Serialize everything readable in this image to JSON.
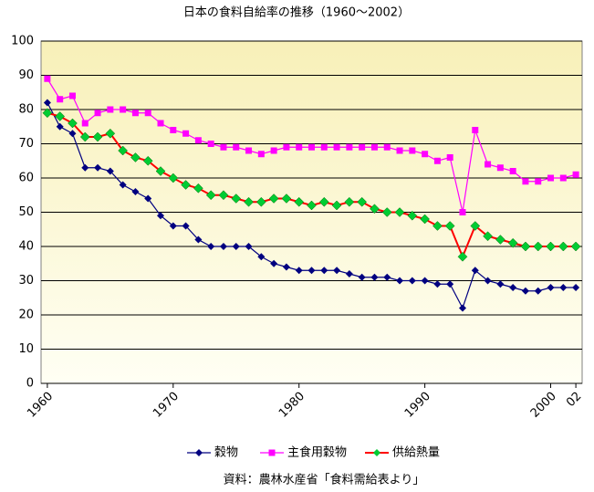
{
  "chart_data": {
    "type": "line",
    "title": "日本の食料自給率の推移（1960～2002）",
    "note": "資料：農林水産省「食料需給表より」",
    "x": [
      1960,
      1961,
      1962,
      1963,
      1964,
      1965,
      1966,
      1967,
      1968,
      1969,
      1970,
      1971,
      1972,
      1973,
      1974,
      1975,
      1976,
      1977,
      1978,
      1979,
      1980,
      1981,
      1982,
      1983,
      1984,
      1985,
      1986,
      1987,
      1988,
      1989,
      1990,
      1991,
      1992,
      1993,
      1994,
      1995,
      1996,
      1997,
      1998,
      1999,
      2000,
      2001,
      2002
    ],
    "series": [
      {
        "name": "穀物",
        "color": "#000080",
        "marker": "diamond",
        "values": [
          82,
          75,
          73,
          63,
          63,
          62,
          58,
          56,
          54,
          49,
          46,
          46,
          42,
          40,
          40,
          40,
          40,
          37,
          35,
          34,
          33,
          33,
          33,
          33,
          32,
          31,
          31,
          31,
          30,
          30,
          30,
          29,
          29,
          22,
          33,
          30,
          29,
          28,
          27,
          27,
          28,
          28,
          28
        ]
      },
      {
        "name": "主食用穀物",
        "color": "#ff00ff",
        "marker": "square",
        "values": [
          89,
          83,
          84,
          76,
          79,
          80,
          80,
          79,
          79,
          76,
          74,
          73,
          71,
          70,
          69,
          69,
          68,
          67,
          68,
          69,
          69,
          69,
          69,
          69,
          69,
          69,
          69,
          69,
          68,
          68,
          67,
          65,
          66,
          50,
          74,
          64,
          63,
          62,
          59,
          59,
          60,
          60,
          61
        ]
      },
      {
        "name": "供給熱量",
        "color": "#ff0000",
        "marker_color": "#00cc33",
        "marker": "diamond",
        "values": [
          79,
          78,
          76,
          72,
          72,
          73,
          68,
          66,
          65,
          62,
          60,
          58,
          57,
          55,
          55,
          54,
          53,
          53,
          54,
          54,
          53,
          52,
          53,
          52,
          53,
          53,
          51,
          50,
          50,
          49,
          48,
          46,
          46,
          37,
          46,
          43,
          42,
          41,
          40,
          40,
          40,
          40,
          40
        ]
      }
    ],
    "xlim": [
      1959.5,
      2002.5
    ],
    "xticks": [
      1960,
      1970,
      1980,
      1990,
      2000,
      {
        "value": 2002,
        "label": "02"
      }
    ],
    "ylim": [
      0,
      100
    ],
    "yticks": [
      0,
      10,
      20,
      30,
      40,
      50,
      60,
      70,
      80,
      90,
      100
    ],
    "grid": true,
    "legend": "bottom"
  }
}
